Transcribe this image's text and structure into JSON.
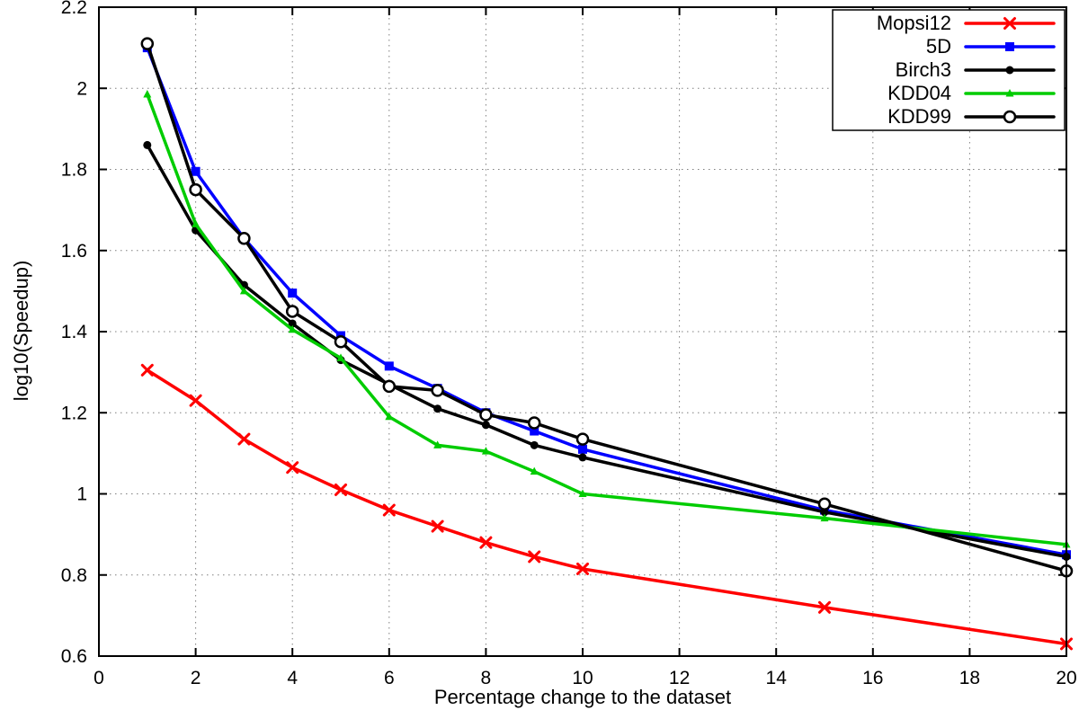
{
  "chart_data": {
    "type": "line",
    "title": "",
    "xlabel": "Percentage change to the dataset",
    "ylabel": "log10(Speedup)",
    "xlim": [
      0,
      20
    ],
    "ylim": [
      0.6,
      2.2
    ],
    "xticks": [
      0,
      2,
      4,
      6,
      8,
      10,
      12,
      14,
      16,
      18,
      20
    ],
    "xticklabels": [
      "0",
      "2",
      "4",
      "6",
      "8",
      "10",
      "12",
      "14",
      "16",
      "18",
      "20"
    ],
    "yticks": [
      0.6,
      0.8,
      1.0,
      1.2,
      1.4,
      1.6,
      1.8,
      2.0,
      2.2
    ],
    "yticklabels": [
      "0.6",
      "0.8",
      "1",
      "1.2",
      "1.4",
      "1.6",
      "1.8",
      "2",
      "2.2"
    ],
    "grid": true,
    "legend_position": "top-right",
    "x": [
      1,
      2,
      3,
      4,
      5,
      6,
      7,
      8,
      9,
      10,
      15,
      20
    ],
    "series": [
      {
        "name": "Mopsi12",
        "color": "#ff0000",
        "marker": "x",
        "values": [
          1.305,
          1.23,
          1.135,
          1.065,
          1.01,
          0.96,
          0.92,
          0.88,
          0.845,
          0.815,
          0.72,
          0.63
        ]
      },
      {
        "name": "5D",
        "color": "#0000ff",
        "marker": "square",
        "values": [
          2.1,
          1.795,
          1.63,
          1.495,
          1.39,
          1.315,
          1.26,
          1.2,
          1.155,
          1.11,
          0.96,
          0.85
        ]
      },
      {
        "name": "Birch3",
        "color": "#000000",
        "marker": "circle-filled",
        "values": [
          1.86,
          1.65,
          1.515,
          1.42,
          1.33,
          1.27,
          1.21,
          1.17,
          1.12,
          1.09,
          0.955,
          0.845
        ]
      },
      {
        "name": "KDD04",
        "color": "#00cc00",
        "marker": "triangle",
        "values": [
          1.985,
          1.665,
          1.5,
          1.405,
          1.335,
          1.19,
          1.12,
          1.105,
          1.055,
          1.0,
          0.94,
          0.875
        ]
      },
      {
        "name": "KDD99",
        "color": "#000000",
        "marker": "circle-open",
        "values": [
          2.11,
          1.75,
          1.63,
          1.45,
          1.375,
          1.265,
          1.255,
          1.195,
          1.175,
          1.135,
          0.975,
          0.81
        ]
      }
    ]
  }
}
